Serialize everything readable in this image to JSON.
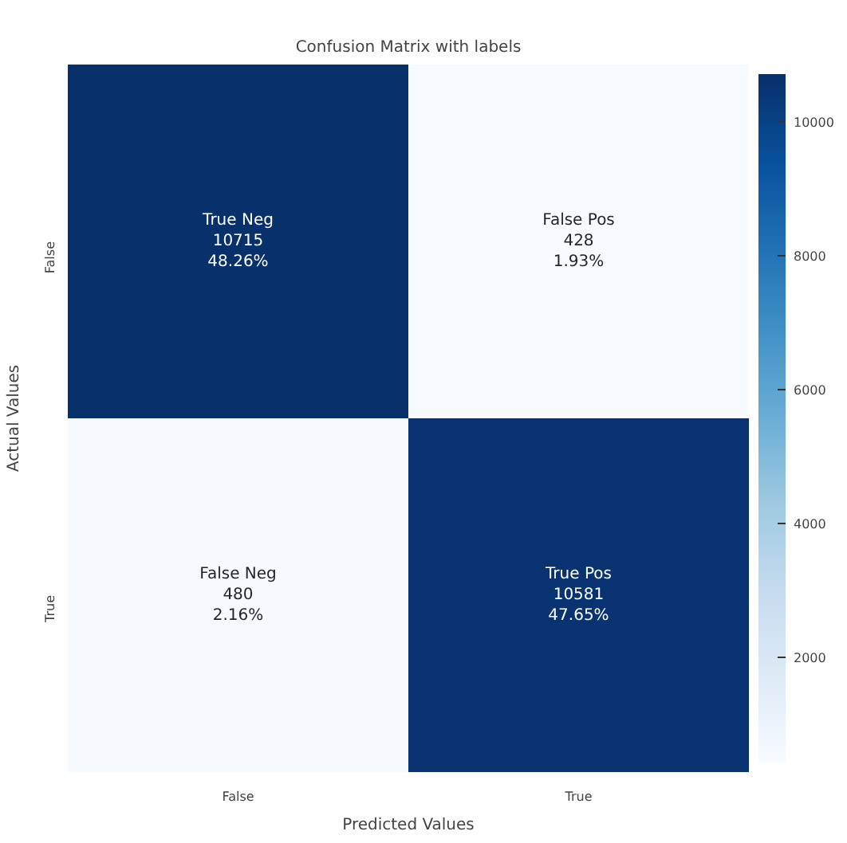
{
  "chart_data": {
    "type": "heatmap",
    "title": "Confusion Matrix with labels",
    "xlabel": "Predicted Values",
    "ylabel": "Actual Values",
    "categories": [
      "False",
      "True"
    ],
    "y_categories": [
      "False",
      "True"
    ],
    "cells": [
      [
        10715,
        428
      ],
      [
        480,
        10581
      ]
    ],
    "cell_labels": [
      [
        "True Neg\n10715\n48.26%",
        "False Pos\n428\n1.93%"
      ],
      [
        "False Neg\n480\n2.16%",
        "True Pos\n10581\n47.65%"
      ]
    ],
    "clim": [
      428,
      10715
    ],
    "cticks": [
      2000,
      4000,
      6000,
      8000,
      10000
    ]
  }
}
